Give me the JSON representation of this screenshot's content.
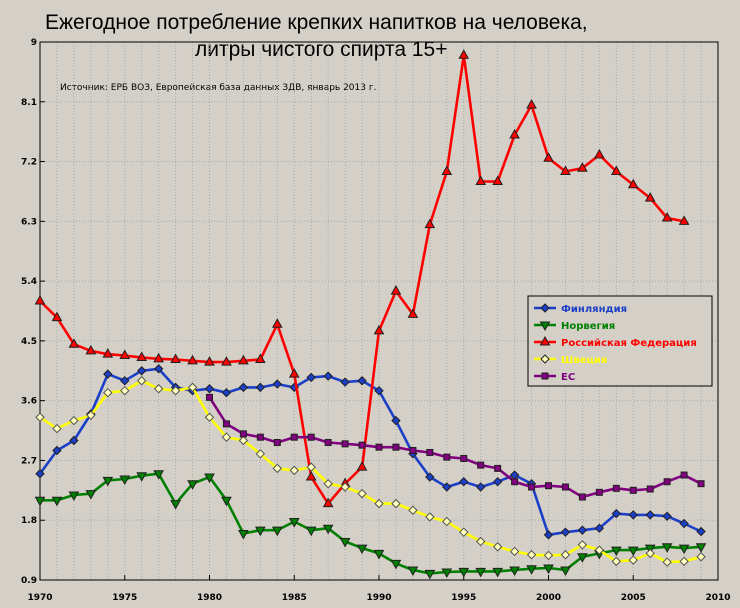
{
  "chart_data": {
    "type": "line",
    "title_line1": "Ежегодное потребление крепких напитков на человека,",
    "title_line2": "литры чистого спирта 15+",
    "source": "Источник: ЕРБ ВОЗ, Европейская база данных ЗДВ, январь 2013 г.",
    "xlim": [
      1970,
      2010
    ],
    "ylim": [
      0.9,
      9.0
    ],
    "xticks": [
      1970,
      1975,
      1980,
      1985,
      1990,
      1995,
      2000,
      2005,
      2010
    ],
    "xtick_labels": [
      "1970",
      "1975",
      "1980",
      "1985",
      "1990",
      "1995",
      "2000",
      "2005",
      "2010"
    ],
    "yticks": [
      0.9,
      1.8,
      2.7,
      3.6,
      4.5,
      5.4,
      6.3,
      7.2,
      8.1,
      9.0
    ],
    "ytick_labels": [
      "0.9",
      "1.8",
      "2.7",
      "3.6",
      "4.5",
      "5.4",
      "6.3",
      "7.2",
      "8.1",
      "9"
    ],
    "grid": true,
    "legend_position": "right",
    "series": [
      {
        "name": "Финляндия",
        "color": "#1c3fc8",
        "marker": "diamond",
        "marker_fill": "#1c3fc8",
        "x": [
          1970,
          1971,
          1972,
          1973,
          1974,
          1975,
          1976,
          1977,
          1978,
          1979,
          1980,
          1981,
          1982,
          1983,
          1984,
          1985,
          1986,
          1987,
          1988,
          1989,
          1990,
          1991,
          1992,
          1993,
          1994,
          1995,
          1996,
          1997,
          1998,
          1999,
          2000,
          2001,
          2002,
          2003,
          2004,
          2005,
          2006,
          2007,
          2008,
          2009
        ],
        "y": [
          2.5,
          2.85,
          3.0,
          3.4,
          4.0,
          3.9,
          4.05,
          4.08,
          3.8,
          3.75,
          3.78,
          3.72,
          3.8,
          3.8,
          3.85,
          3.8,
          3.95,
          3.97,
          3.88,
          3.9,
          3.75,
          3.3,
          2.8,
          2.45,
          2.3,
          2.38,
          2.3,
          2.38,
          2.48,
          2.35,
          1.58,
          1.62,
          1.65,
          1.68,
          1.9,
          1.88,
          1.88,
          1.86,
          1.75,
          1.63
        ]
      },
      {
        "name": "Норвегия",
        "color": "#008000",
        "marker": "triangle-down",
        "marker_fill": "#008000",
        "x": [
          1970,
          1971,
          1972,
          1973,
          1974,
          1975,
          1976,
          1977,
          1978,
          1979,
          1980,
          1981,
          1982,
          1983,
          1984,
          1985,
          1986,
          1987,
          1988,
          1989,
          1990,
          1991,
          1992,
          1993,
          1994,
          1995,
          1996,
          1997,
          1998,
          1999,
          2000,
          2001,
          2002,
          2003,
          2004,
          2005,
          2006,
          2007,
          2008,
          2009
        ],
        "y": [
          2.1,
          2.1,
          2.18,
          2.2,
          2.4,
          2.42,
          2.47,
          2.5,
          2.05,
          2.35,
          2.45,
          2.1,
          1.6,
          1.65,
          1.65,
          1.78,
          1.65,
          1.68,
          1.48,
          1.38,
          1.3,
          1.15,
          1.05,
          1.0,
          1.02,
          1.03,
          1.03,
          1.03,
          1.05,
          1.07,
          1.08,
          1.05,
          1.25,
          1.3,
          1.35,
          1.35,
          1.38,
          1.4,
          1.38,
          1.4
        ]
      },
      {
        "name": "Российская Федерация",
        "color": "#ff0000",
        "marker": "triangle-up",
        "marker_fill": "#ff0000",
        "x": [
          1970,
          1971,
          1972,
          1973,
          1974,
          1975,
          1976,
          1977,
          1978,
          1979,
          1980,
          1981,
          1982,
          1983,
          1984,
          1985,
          1986,
          1987,
          1988,
          1989,
          1990,
          1991,
          1992,
          1993,
          1994,
          1995,
          1996,
          1997,
          1998,
          1999,
          2000,
          2001,
          2002,
          2003,
          2004,
          2005,
          2006,
          2007,
          2008
        ],
        "y": [
          5.1,
          4.85,
          4.45,
          4.35,
          4.3,
          4.28,
          4.25,
          4.23,
          4.22,
          4.2,
          4.18,
          4.18,
          4.2,
          4.22,
          4.75,
          4.0,
          2.45,
          2.05,
          2.35,
          2.6,
          4.65,
          5.25,
          4.9,
          6.25,
          7.05,
          8.8,
          6.9,
          6.9,
          7.6,
          8.05,
          7.25,
          7.05,
          7.1,
          7.3,
          7.05,
          6.85,
          6.65,
          6.35,
          6.3
        ]
      },
      {
        "name": "Швеция",
        "color": "#ffff00",
        "marker": "diamond",
        "marker_fill": "#ffffc0",
        "x": [
          1970,
          1971,
          1972,
          1973,
          1974,
          1975,
          1976,
          1977,
          1978,
          1979,
          1980,
          1981,
          1982,
          1983,
          1984,
          1985,
          1986,
          1987,
          1988,
          1989,
          1990,
          1991,
          1992,
          1993,
          1994,
          1995,
          1996,
          1997,
          1998,
          1999,
          2000,
          2001,
          2002,
          2003,
          2004,
          2005,
          2006,
          2007,
          2008,
          2009
        ],
        "y": [
          3.35,
          3.18,
          3.3,
          3.38,
          3.72,
          3.75,
          3.9,
          3.78,
          3.75,
          3.8,
          3.35,
          3.05,
          3.0,
          2.8,
          2.58,
          2.55,
          2.6,
          2.35,
          2.3,
          2.2,
          2.05,
          2.05,
          1.95,
          1.85,
          1.78,
          1.62,
          1.48,
          1.4,
          1.33,
          1.28,
          1.27,
          1.28,
          1.43,
          1.35,
          1.18,
          1.2,
          1.3,
          1.17,
          1.18,
          1.25
        ]
      },
      {
        "name": "ЕС",
        "color": "#800080",
        "marker": "square",
        "marker_fill": "#800080",
        "x": [
          1980,
          1981,
          1982,
          1983,
          1984,
          1985,
          1986,
          1987,
          1988,
          1989,
          1990,
          1991,
          1992,
          1993,
          1994,
          1995,
          1996,
          1997,
          1998,
          1999,
          2000,
          2001,
          2002,
          2003,
          2004,
          2005,
          2006,
          2007,
          2008,
          2009
        ],
        "y": [
          3.65,
          3.25,
          3.1,
          3.05,
          2.97,
          3.05,
          3.05,
          2.97,
          2.95,
          2.93,
          2.9,
          2.9,
          2.85,
          2.82,
          2.75,
          2.73,
          2.63,
          2.58,
          2.38,
          2.3,
          2.32,
          2.3,
          2.15,
          2.22,
          2.28,
          2.25,
          2.27,
          2.38,
          2.48,
          2.35
        ]
      }
    ]
  }
}
